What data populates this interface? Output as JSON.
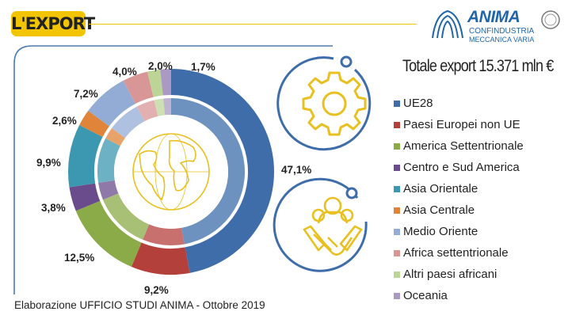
{
  "header": {
    "title": "L'EXPORT"
  },
  "logo": {
    "name": "ANIMA",
    "line1": "CONFINDUSTRIA",
    "line2": "MECCANICA VARIA"
  },
  "total_label": "Totale export 15.371 mln €",
  "footer": "Elaborazione UFFICIO STUDI ANIMA - Ottobre 2019",
  "chart_data": {
    "type": "pie",
    "style": "donut",
    "title": "",
    "categories": [
      "UE28",
      "Paesi Europei non UE",
      "America Settentrionale",
      "Centro e Sud America",
      "Asia Orientale",
      "Asia Centrale",
      "Medio Oriente",
      "Africa settentrionale",
      "Altri paesi africani",
      "Oceania"
    ],
    "values": [
      47.1,
      9.2,
      12.5,
      3.8,
      9.9,
      2.6,
      7.2,
      4.0,
      2.0,
      1.7
    ],
    "value_labels": [
      "47,1%",
      "9,2%",
      "12,5%",
      "3,8%",
      "9,9%",
      "2,6%",
      "7,2%",
      "4,0%",
      "2,0%",
      "1,7%"
    ],
    "colors": [
      "#3e6daa",
      "#b4403c",
      "#8baa48",
      "#6a4c8c",
      "#3c98b0",
      "#e0843a",
      "#93acd6",
      "#d99697",
      "#bcd597",
      "#aa9ac3"
    ],
    "legend_position": "right"
  },
  "icons": {
    "top": "gear-icon",
    "bottom": "handshake-icon",
    "center": "globe-icon"
  }
}
